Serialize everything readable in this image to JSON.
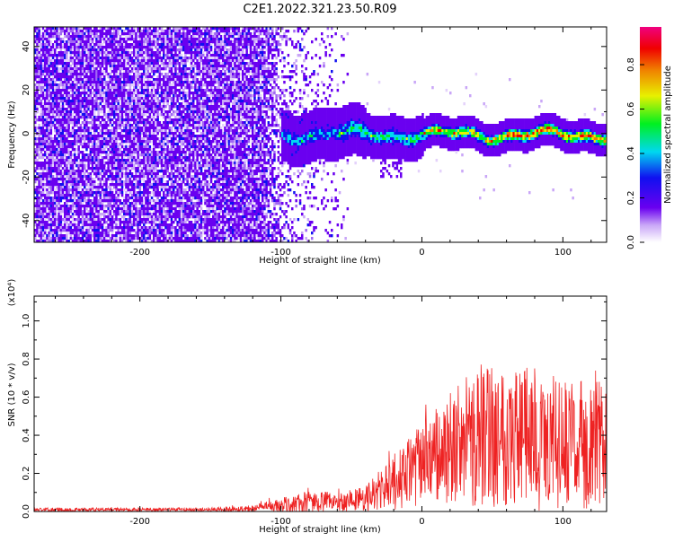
{
  "figure_title": "C2E1.2022.321.23.50.R09",
  "colors": {
    "purple": "#6a00f0",
    "snr_line": "#ee2222"
  },
  "chart_data": [
    {
      "type": "heatmap",
      "title": "",
      "xlabel": "Height of straight line (km)",
      "ylabel": "Frequency (Hz)",
      "xlim": [
        -275,
        131
      ],
      "ylim": [
        -50,
        49
      ],
      "xticks": [
        -200,
        -100,
        0,
        100
      ],
      "yticks": [
        -40,
        -20,
        0,
        20,
        40
      ],
      "colorbar": {
        "label": "Normalized spectral amplitude",
        "range": [
          0.0,
          0.97
        ],
        "ticks": [
          0.0,
          0.2,
          0.4,
          0.6,
          0.8
        ],
        "tick_labels": [
          "0.0",
          "0.2",
          "0.4",
          "0.6",
          "0.8"
        ],
        "colormap": "rainbow (purple-blue-cyan-green-yellow-red-magenta)"
      },
      "description_features": {
        "noise_region_x": [
          -275,
          -100
        ],
        "signal_band_center_freq": 0,
        "signal_band_halfwidth_hz": [
          8,
          4
        ]
      }
    },
    {
      "type": "line",
      "title": "",
      "xlabel": "Height of straight line (km)",
      "ylabel": "SNR (10 * v/v)",
      "y_multiplier": "(x10⁴)",
      "xlim": [
        -275,
        131
      ],
      "ylim": [
        0,
        1.13
      ],
      "xticks": [
        -200,
        -100,
        0,
        100
      ],
      "yticks": [
        0.0,
        0.2,
        0.4,
        0.6,
        0.8,
        1.0
      ],
      "ytick_labels": [
        "0.0",
        "0.2",
        "0.4",
        "0.6",
        "0.8",
        "1.0"
      ],
      "envelope": [
        {
          "x": -275,
          "mean": 0.01,
          "amp": 0.01
        },
        {
          "x": -150,
          "mean": 0.01,
          "amp": 0.01
        },
        {
          "x": -120,
          "mean": 0.015,
          "amp": 0.02
        },
        {
          "x": -100,
          "mean": 0.03,
          "amp": 0.04
        },
        {
          "x": -80,
          "mean": 0.05,
          "amp": 0.06
        },
        {
          "x": -60,
          "mean": 0.05,
          "amp": 0.05
        },
        {
          "x": -40,
          "mean": 0.07,
          "amp": 0.07
        },
        {
          "x": -20,
          "mean": 0.15,
          "amp": 0.15
        },
        {
          "x": 0,
          "mean": 0.25,
          "amp": 0.22
        },
        {
          "x": 20,
          "mean": 0.32,
          "amp": 0.3
        },
        {
          "x": 40,
          "mean": 0.4,
          "amp": 0.38
        },
        {
          "x": 60,
          "mean": 0.42,
          "amp": 0.4
        },
        {
          "x": 80,
          "mean": 0.38,
          "amp": 0.38
        },
        {
          "x": 100,
          "mean": 0.35,
          "amp": 0.34
        },
        {
          "x": 131,
          "mean": 0.35,
          "amp": 0.33
        }
      ]
    }
  ]
}
